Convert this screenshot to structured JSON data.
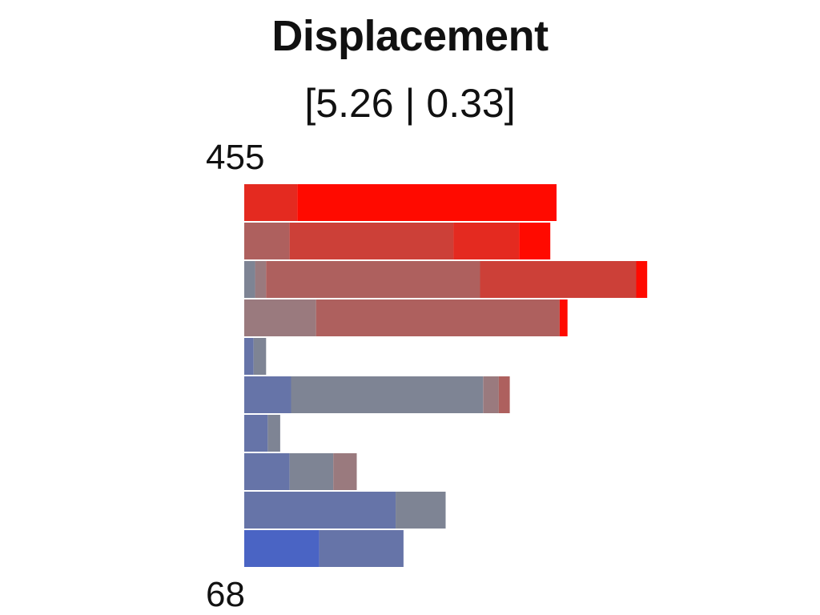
{
  "chart_data": {
    "type": "bar",
    "orientation": "horizontal",
    "stacked": true,
    "title": "Displacement",
    "subtitle": "[5.26 | 0.33]",
    "axis_max_label": "455",
    "axis_min_label": "68",
    "value_range": [
      0,
      1.0
    ],
    "bin_colors": [
      "#4a64c4",
      "#6674a8",
      "#7e8494",
      "#9a7a7e",
      "#ae605e",
      "#cc4038",
      "#e42a20",
      "#ff0a00"
    ],
    "rows": [
      [
        0,
        0,
        0,
        0,
        0,
        0,
        0.17,
        0.83
      ],
      [
        0,
        0,
        0,
        0,
        0.145,
        0.525,
        0.21,
        0.1
      ],
      [
        0,
        0,
        0.035,
        0.035,
        0.685,
        0.5,
        0,
        0.035
      ],
      [
        0,
        0,
        0,
        0.23,
        0.78,
        0,
        0,
        0.025
      ],
      [
        0,
        0.03,
        0.04,
        0,
        0,
        0,
        0,
        0
      ],
      [
        0,
        0.15,
        0.615,
        0.05,
        0.035,
        0,
        0,
        0
      ],
      [
        0,
        0.075,
        0.04,
        0,
        0,
        0,
        0,
        0
      ],
      [
        0,
        0.145,
        0.14,
        0.075,
        0,
        0,
        0,
        0
      ],
      [
        0,
        0.485,
        0.16,
        0,
        0,
        0,
        0,
        0
      ],
      [
        0.24,
        0.27,
        0,
        0,
        0,
        0,
        0,
        0
      ]
    ]
  }
}
